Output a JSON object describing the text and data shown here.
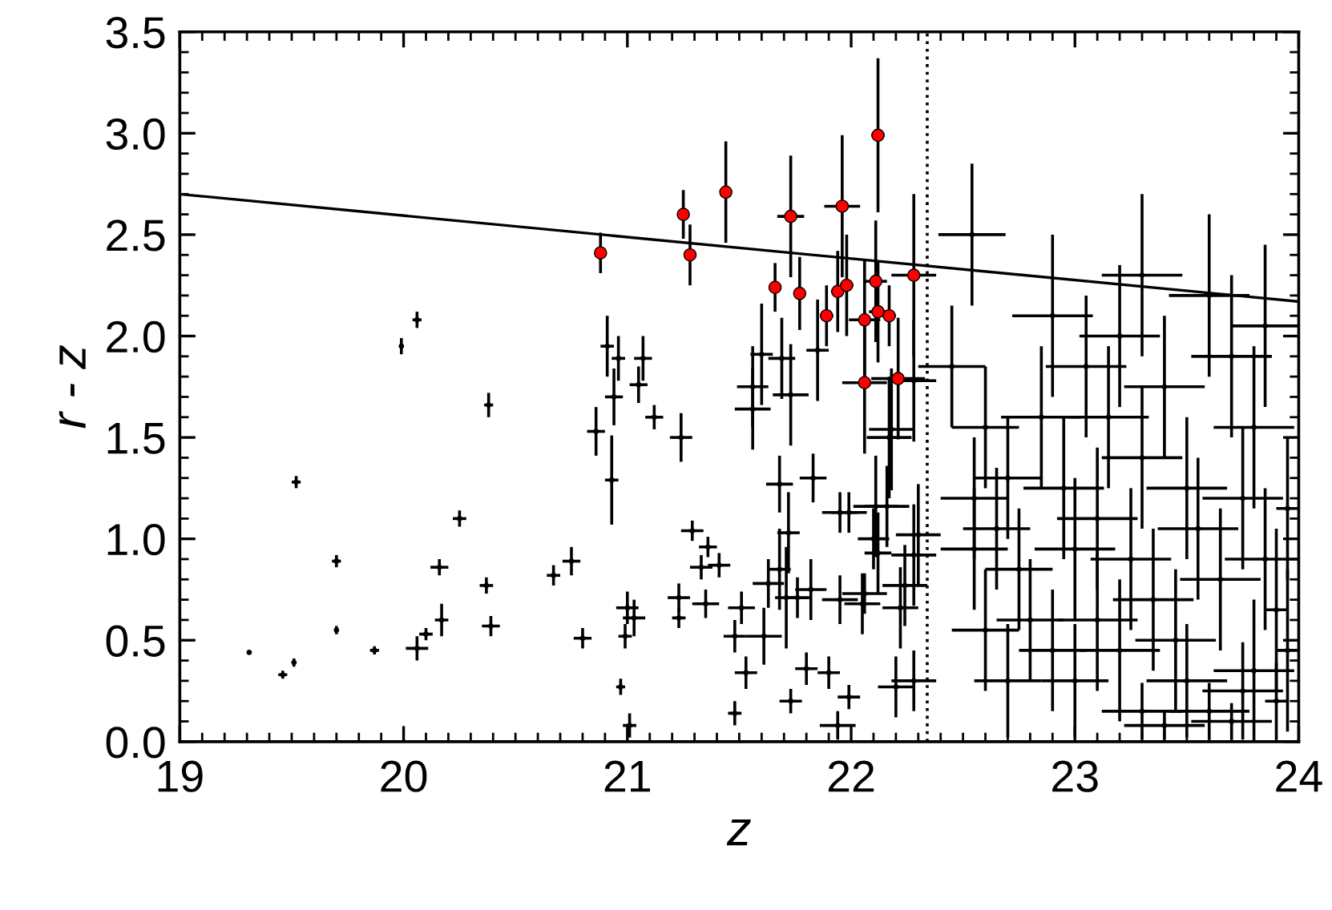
{
  "chart_data": {
    "type": "scatter",
    "xlabel": "z",
    "ylabel": "r - z",
    "xlim": [
      19,
      24
    ],
    "ylim": [
      0,
      3.5
    ],
    "xticks": [
      19,
      20,
      21,
      22,
      23,
      24
    ],
    "yticks": [
      {
        "value": 0,
        "label": "0.0"
      },
      {
        "value": 0.5,
        "label": "0.5"
      },
      {
        "value": 1,
        "label": "1.0"
      },
      {
        "value": 1.5,
        "label": "1.5"
      },
      {
        "value": 2,
        "label": "2.0"
      },
      {
        "value": 2.5,
        "label": "2.5"
      },
      {
        "value": 3,
        "label": "3.0"
      },
      {
        "value": 3.5,
        "label": "3.5"
      }
    ],
    "grid": false,
    "legend": false,
    "ref_lines": [
      {
        "axis": "x",
        "value": 22.34,
        "color": "#000000",
        "line_style": "dotted"
      }
    ],
    "series": [
      {
        "type": "line",
        "color": "#000000",
        "line_style": "solid",
        "marker": "none",
        "x": [
          19,
          24
        ],
        "values": [
          2.7,
          2.17
        ]
      },
      {
        "color": "#000000",
        "marker": "none",
        "x": [
          19.31,
          19.46,
          19.51,
          19.52,
          19.7,
          19.7,
          19.87,
          19.99,
          20.06,
          20.06,
          20.1,
          20.16,
          20.17,
          20.25,
          20.38,
          20.37,
          20.39,
          20.67,
          20.75,
          20.8,
          20.91,
          20.96,
          20.94,
          20.86,
          20.93,
          21.05,
          21.07,
          21.12,
          21.0,
          21.03,
          20.99,
          20.97,
          21.01,
          21.24,
          21.29,
          21.36,
          21.33,
          21.41,
          21.23,
          21.23,
          21.35,
          21.51,
          21.48,
          21.61,
          21.53,
          21.48,
          21.73,
          21.8,
          21.9,
          21.99,
          21.94,
          21.63,
          21.68,
          21.71,
          21.76,
          21.82,
          21.95,
          22.06,
          22.05,
          21.68,
          21.83,
          21.72,
          21.95,
          21.99,
          22.11,
          22.16,
          22.1,
          22.12,
          21.6,
          21.56,
          21.56,
          21.69,
          21.73,
          21.85,
          22.18,
          22.17,
          22.28,
          22.24,
          22.22,
          22.2,
          22.28,
          22.3,
          22.28,
          22.54,
          22.45,
          22.6,
          22.7,
          22.55,
          22.65,
          22.55,
          22.75,
          22.8,
          22.6,
          22.9,
          23.0,
          22.85,
          23.05,
          23.15,
          23.2,
          23.3,
          23.1,
          23.25,
          23.35,
          23.45,
          23.5,
          23.6,
          23.7,
          23.75,
          23.8,
          23.9,
          23.95,
          23.55,
          23.65,
          23.75,
          23.85,
          23.95,
          23.4,
          23.6,
          23.7,
          23.85,
          23.0,
          23.1,
          23.2,
          23.3,
          23.4,
          22.95,
          23.5,
          22.7,
          23.9,
          23.3,
          22.9,
          23.8
        ],
        "values": [
          0.44,
          0.33,
          0.39,
          1.28,
          0.89,
          0.55,
          0.45,
          1.95,
          2.08,
          0.46,
          0.53,
          0.86,
          0.6,
          1.1,
          1.66,
          0.77,
          0.57,
          0.82,
          0.89,
          0.51,
          1.95,
          1.89,
          1.7,
          1.53,
          1.29,
          1.76,
          1.89,
          1.6,
          0.66,
          0.61,
          0.52,
          0.27,
          0.08,
          1.5,
          1.04,
          0.96,
          0.86,
          0.87,
          0.71,
          0.61,
          0.68,
          0.66,
          0.52,
          0.52,
          0.34,
          0.14,
          0.2,
          0.36,
          0.34,
          0.22,
          0.08,
          0.78,
          0.85,
          0.71,
          0.71,
          0.75,
          0.7,
          0.73,
          0.68,
          1.27,
          1.3,
          1.03,
          1.13,
          1.13,
          1.16,
          1.16,
          1.0,
          0.93,
          1.91,
          1.75,
          1.64,
          1.89,
          1.71,
          1.93,
          1.54,
          1.5,
          1.78,
          0.77,
          0.66,
          0.27,
          0.3,
          1.02,
          0.92,
          2.5,
          1.85,
          1.55,
          1.3,
          1.2,
          1.05,
          0.95,
          0.85,
          0.6,
          0.55,
          0.45,
          0.3,
          1.6,
          1.85,
          1.6,
          2.0,
          1.4,
          1.1,
          0.9,
          0.7,
          0.5,
          0.3,
          0.15,
          0.1,
          0.25,
          0.35,
          0.2,
          0.45,
          1.05,
          0.8,
          1.2,
          0.9,
          1.15,
          1.75,
          2.2,
          1.9,
          2.05,
          0.95,
          0.6,
          0.45,
          0.15,
          0.08,
          1.25,
          1.25,
          0.3,
          0.65,
          2.3,
          2.1,
          1.55
        ],
        "errors": [
          0.01,
          0.02,
          0.02,
          0.03,
          0.03,
          0.02,
          0.02,
          0.04,
          0.04,
          0.06,
          0.03,
          0.04,
          0.08,
          0.04,
          0.06,
          0.04,
          0.05,
          0.05,
          0.07,
          0.05,
          0.15,
          0.11,
          0.14,
          0.12,
          0.22,
          0.09,
          0.11,
          0.06,
          0.08,
          0.09,
          0.06,
          0.04,
          0.06,
          0.12,
          0.05,
          0.05,
          0.06,
          0.06,
          0.07,
          0.05,
          0.07,
          0.08,
          0.08,
          0.14,
          0.08,
          0.06,
          0.06,
          0.08,
          0.08,
          0.06,
          0.07,
          0.12,
          0.2,
          0.25,
          0.1,
          0.15,
          0.12,
          0.1,
          0.15,
          0.14,
          0.12,
          0.2,
          0.1,
          0.1,
          0.25,
          0.2,
          0.15,
          0.2,
          0.25,
          0.2,
          0.2,
          0.2,
          0.25,
          0.25,
          0.3,
          0.3,
          0.3,
          0.2,
          0.2,
          0.15,
          0.15,
          0.25,
          0.25,
          0.35,
          0.3,
          0.3,
          0.3,
          0.3,
          0.3,
          0.3,
          0.3,
          0.3,
          0.3,
          0.3,
          0.28,
          0.35,
          0.35,
          0.35,
          0.35,
          0.35,
          0.35,
          0.35,
          0.35,
          0.35,
          0.28,
          0.14,
          0.09,
          0.24,
          0.35,
          0.19,
          0.4,
          0.35,
          0.35,
          0.35,
          0.35,
          0.35,
          0.35,
          0.4,
          0.4,
          0.4,
          0.35,
          0.35,
          0.35,
          0.14,
          0.07,
          0.35,
          0.35,
          0.28,
          0.4,
          0.4,
          0.4,
          0.4
        ],
        "xerrors": [
          0.01,
          0.02,
          0.01,
          0.02,
          0.02,
          0.01,
          0.02,
          0.01,
          0.02,
          0.05,
          0.03,
          0.04,
          0.03,
          0.03,
          0.02,
          0.03,
          0.04,
          0.03,
          0.04,
          0.04,
          0.03,
          0.03,
          0.04,
          0.04,
          0.03,
          0.04,
          0.04,
          0.04,
          0.05,
          0.05,
          0.03,
          0.02,
          0.03,
          0.05,
          0.05,
          0.04,
          0.05,
          0.05,
          0.05,
          0.03,
          0.06,
          0.06,
          0.05,
          0.08,
          0.05,
          0.03,
          0.05,
          0.05,
          0.05,
          0.05,
          0.08,
          0.07,
          0.05,
          0.05,
          0.06,
          0.07,
          0.08,
          0.1,
          0.08,
          0.06,
          0.06,
          0.05,
          0.08,
          0.08,
          0.1,
          0.1,
          0.07,
          0.06,
          0.05,
          0.07,
          0.08,
          0.06,
          0.08,
          0.05,
          0.1,
          0.1,
          0.1,
          0.1,
          0.08,
          0.08,
          0.1,
          0.1,
          0.1,
          0.15,
          0.15,
          0.15,
          0.15,
          0.15,
          0.15,
          0.15,
          0.15,
          0.15,
          0.15,
          0.15,
          0.15,
          0.18,
          0.18,
          0.18,
          0.18,
          0.18,
          0.18,
          0.18,
          0.18,
          0.18,
          0.18,
          0.18,
          0.18,
          0.18,
          0.18,
          0.05,
          0.05,
          0.18,
          0.18,
          0.18,
          0.18,
          0.05,
          0.18,
          0.18,
          0.18,
          0.15,
          0.18,
          0.18,
          0.18,
          0.18,
          0.18,
          0.18,
          0.18,
          0.15,
          0.05,
          0.18,
          0.18,
          0.18
        ]
      },
      {
        "color": "#ff0000",
        "marker": "circle",
        "x": [
          20.88,
          21.25,
          21.28,
          21.44,
          21.66,
          21.73,
          21.77,
          21.89,
          21.94,
          21.96,
          21.98,
          22.06,
          22.11,
          22.12,
          22.17,
          22.06,
          22.21,
          22.28,
          22.12
        ],
        "values": [
          2.41,
          2.6,
          2.4,
          2.71,
          2.24,
          2.59,
          2.21,
          2.1,
          2.22,
          2.64,
          2.25,
          2.08,
          2.27,
          2.12,
          2.1,
          1.77,
          1.79,
          2.3,
          2.99
        ],
        "errors": [
          0.1,
          0.12,
          0.15,
          0.25,
          0.12,
          0.3,
          0.18,
          0.15,
          0.2,
          0.35,
          0.25,
          0.3,
          0.3,
          0.25,
          0.15,
          0.35,
          0.3,
          0.4,
          0.38
        ],
        "xerrors": [
          0.01,
          0.02,
          0.01,
          0.01,
          0.02,
          0.06,
          0.02,
          0.03,
          0.03,
          0.08,
          0.03,
          0.07,
          0.05,
          0.04,
          0.03,
          0.1,
          0.12,
          0.1,
          0.03
        ]
      }
    ]
  }
}
